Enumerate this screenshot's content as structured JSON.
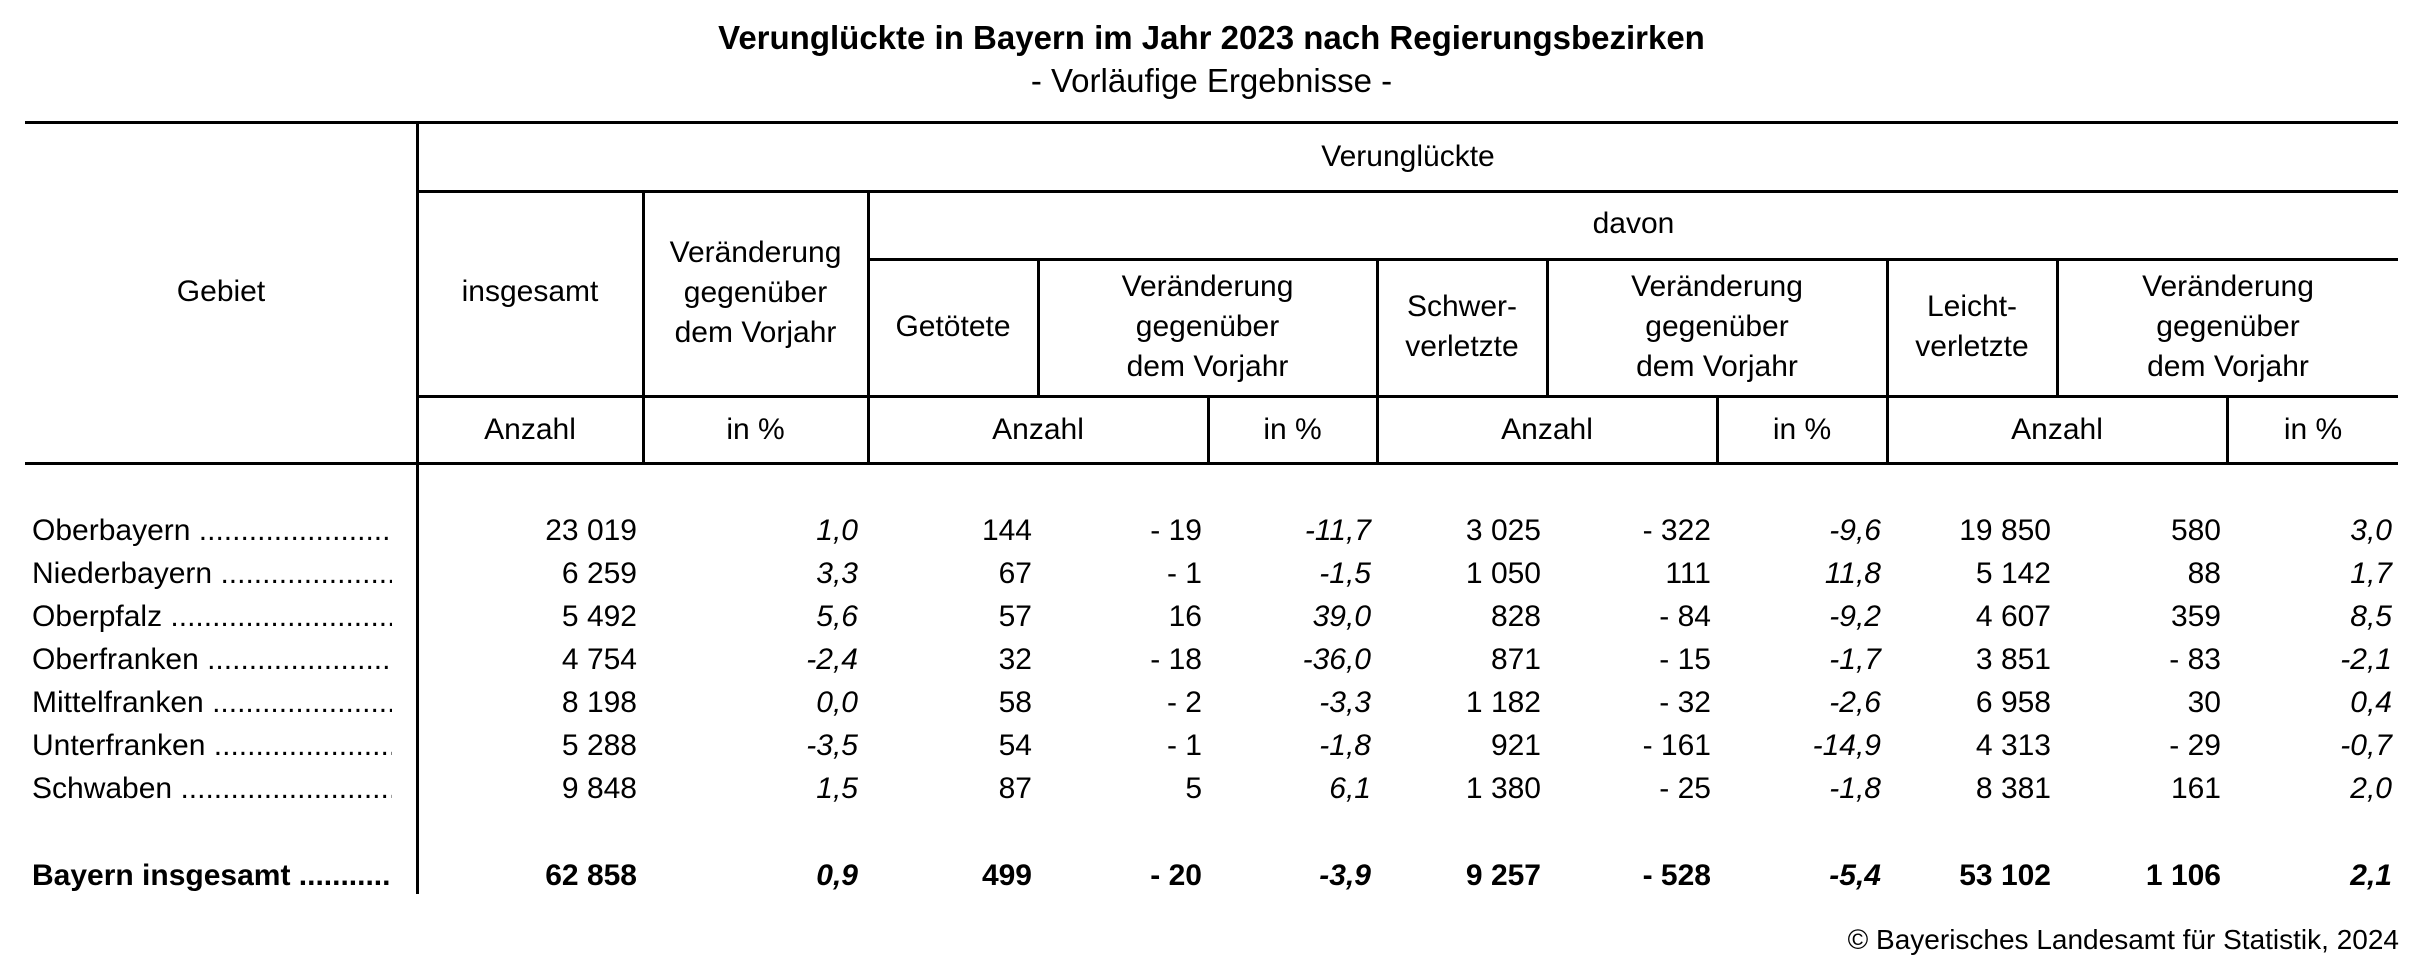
{
  "title": "Verunglückte in Bayern im Jahr 2023 nach Regierungsbezirken",
  "subtitle": "- Vorläufige Ergebnisse -",
  "header": {
    "gebiet": "Gebiet",
    "verunglueckte": "Verunglückte",
    "davon": "davon",
    "insgesamt": "insgesamt",
    "veraenderung": [
      "Veränderung",
      "gegenüber",
      "dem Vorjahr"
    ],
    "getoetete": "Getötete",
    "schwer": [
      "Schwer-",
      "verletzte"
    ],
    "leicht": [
      "Leicht-",
      "verletzte"
    ],
    "anzahl": "Anzahl",
    "in_pct": "in %"
  },
  "rows": [
    {
      "name": "Oberbayern",
      "values": [
        "23 019",
        "1,0",
        "144",
        "- 19",
        "-11,7",
        "3 025",
        "- 322",
        "-9,6",
        "19 850",
        "580",
        "3,0"
      ]
    },
    {
      "name": "Niederbayern",
      "values": [
        "6 259",
        "3,3",
        "67",
        "- 1",
        "-1,5",
        "1 050",
        "111",
        "11,8",
        "5 142",
        "88",
        "1,7"
      ]
    },
    {
      "name": "Oberpfalz",
      "values": [
        "5 492",
        "5,6",
        "57",
        "16",
        "39,0",
        "828",
        "- 84",
        "-9,2",
        "4 607",
        "359",
        "8,5"
      ]
    },
    {
      "name": "Oberfranken",
      "values": [
        "4 754",
        "-2,4",
        "32",
        "- 18",
        "-36,0",
        "871",
        "- 15",
        "-1,7",
        "3 851",
        "- 83",
        "-2,1"
      ]
    },
    {
      "name": "Mittelfranken",
      "values": [
        "8 198",
        "0,0",
        "58",
        "- 2",
        "-3,3",
        "1 182",
        "- 32",
        "-2,6",
        "6 958",
        "30",
        "0,4"
      ]
    },
    {
      "name": "Unterfranken",
      "values": [
        "5 288",
        "-3,5",
        "54",
        "- 1",
        "-1,8",
        "921",
        "- 161",
        "-14,9",
        "4 313",
        "- 29",
        "-0,7"
      ]
    },
    {
      "name": "Schwaben",
      "values": [
        "9 848",
        "1,5",
        "87",
        "5",
        "6,1",
        "1 380",
        "- 25",
        "-1,8",
        "8 381",
        "161",
        "2,0"
      ]
    }
  ],
  "total": {
    "name": "Bayern insgesamt",
    "values": [
      "62 858",
      "0,9",
      "499",
      "- 20",
      "-3,9",
      "9 257",
      "- 528",
      "-5,4",
      "53 102",
      "1 106",
      "2,1"
    ]
  },
  "footer": "© Bayerisches Landesamt für Statistik, 2024"
}
